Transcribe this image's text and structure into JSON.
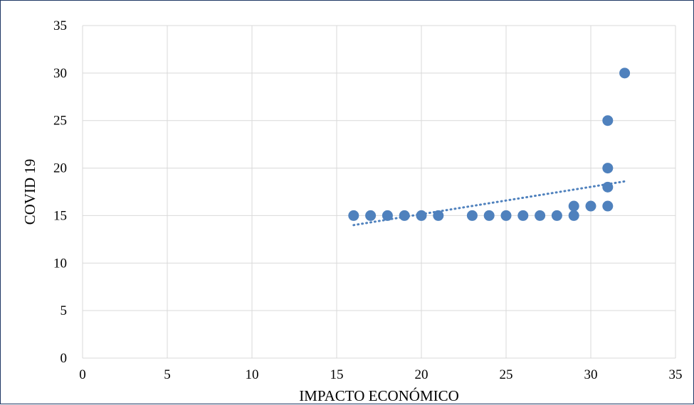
{
  "chart_data": {
    "type": "scatter",
    "title": "",
    "xlabel": "IMPACTO ECONÓMICO",
    "ylabel": "COVID 19",
    "xlim": [
      0,
      35
    ],
    "ylim": [
      0,
      35
    ],
    "xticks": [
      0,
      5,
      10,
      15,
      20,
      25,
      30,
      35
    ],
    "yticks": [
      0,
      5,
      10,
      15,
      20,
      25,
      30,
      35
    ],
    "grid": true,
    "legend": "none",
    "series": [
      {
        "color": "#4f81bd",
        "points": [
          {
            "x": 16,
            "y": 15
          },
          {
            "x": 17,
            "y": 15
          },
          {
            "x": 18,
            "y": 15
          },
          {
            "x": 19,
            "y": 15
          },
          {
            "x": 20,
            "y": 15
          },
          {
            "x": 21,
            "y": 15
          },
          {
            "x": 23,
            "y": 15
          },
          {
            "x": 24,
            "y": 15
          },
          {
            "x": 25,
            "y": 15
          },
          {
            "x": 26,
            "y": 15
          },
          {
            "x": 27,
            "y": 15
          },
          {
            "x": 28,
            "y": 15
          },
          {
            "x": 29,
            "y": 15
          },
          {
            "x": 29,
            "y": 16
          },
          {
            "x": 30,
            "y": 16
          },
          {
            "x": 31,
            "y": 16
          },
          {
            "x": 31,
            "y": 18
          },
          {
            "x": 31,
            "y": 20
          },
          {
            "x": 31,
            "y": 25
          },
          {
            "x": 32,
            "y": 30
          }
        ]
      }
    ],
    "trendline": {
      "type": "linear",
      "style": "dotted",
      "color": "#4f81bd",
      "from": {
        "x": 16,
        "y": 14.0
      },
      "to": {
        "x": 32,
        "y": 18.6
      }
    }
  }
}
